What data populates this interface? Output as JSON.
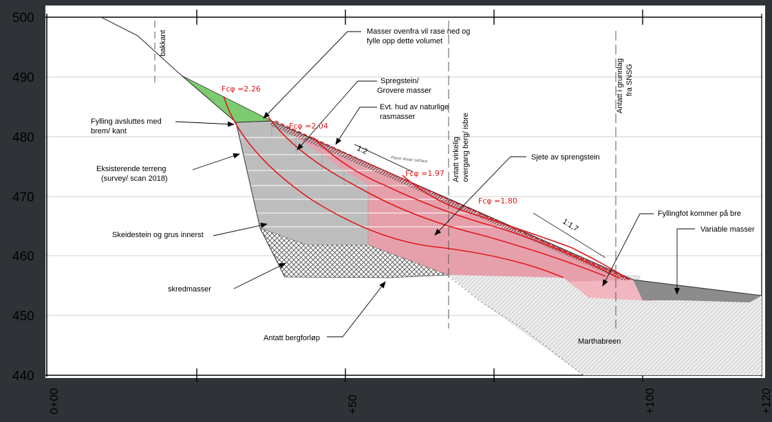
{
  "diagram": {
    "y_axis": {
      "ticks": [
        "500",
        "490",
        "480",
        "470",
        "460",
        "450",
        "440"
      ]
    },
    "x_axis": {
      "ticks": [
        "0+00",
        "+50",
        "+100",
        "+120"
      ]
    },
    "vertical_labels": {
      "bakkant": "bakkant",
      "overgang_line1": "Antatt virkelig",
      "overgang_line2": "overgang berg/ isbre",
      "grunnlag_line1": "Antatt i grunnlag",
      "grunnlag_line2": "fra SNSG"
    },
    "annotations": {
      "masser_line1": "Masser ovenfra vil rase ned og",
      "masser_line2": "fylle opp dette volumet",
      "spregstein_line1": "Spregstein/",
      "spregstein_line2": "Grovere masser",
      "hud_line1": "Evt. hud av naturlige",
      "hud_line2": "rasmasser",
      "fylling_line1": "Fylling avsluttes med",
      "fylling_line2": "brem/ kant",
      "eksisterende_line1": "Eksisterende terreng",
      "eksisterende_line2": "(survey/ scan 2018)",
      "sjete": "Sjete av sprengstein",
      "skeidestein": "Skeidestein og grus innerst",
      "skredmasser": "skredmasser",
      "bergforlop": "Antatt bergforløp",
      "marthabreen": "Marthabreen",
      "fyllingfot": "Fyllingfot kommer på bre",
      "variable": "Variable masser",
      "slope_1_2": "1:2",
      "slope_1_17": "1:1,7",
      "plane_shear": "Plane shear surface"
    },
    "safety_factors": [
      {
        "label": "Fcφ =2.26"
      },
      {
        "label": "Fcφ =2.04"
      },
      {
        "label": "Fcφ =1.97"
      },
      {
        "label": "Fcφ =1.80"
      }
    ],
    "colors": {
      "green_fill": "#7dcb6f",
      "pink_fill": "#e6a0ac",
      "gray_fill": "#bdbdbd",
      "dark_gray_fill": "#8c8c8c",
      "slip_line": "#e0191b",
      "frame_bg": "#2f3338"
    }
  }
}
